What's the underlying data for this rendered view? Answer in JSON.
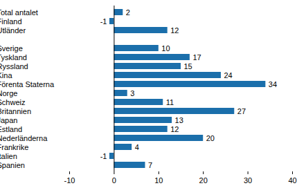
{
  "chart_data": {
    "type": "bar",
    "orientation": "horizontal",
    "categories": [
      "Total antalet",
      "Finland",
      "Utländer",
      null,
      "Sverige",
      "Tyskland",
      "Ryssland",
      "Kina",
      "Förenta Staterna",
      "Norge",
      "Schweiz",
      "Britannien",
      "Japan",
      "Estland",
      "Nederländerna",
      "Frankrike",
      "Italien",
      "Spanien"
    ],
    "values": [
      2,
      -1,
      12,
      null,
      10,
      17,
      15,
      24,
      34,
      3,
      11,
      27,
      13,
      12,
      20,
      4,
      -1,
      7
    ],
    "color": "#1b6fab",
    "data_labels": true,
    "xlim": [
      -10,
      40
    ],
    "xticks": [
      -10,
      0,
      10,
      20,
      30,
      40
    ],
    "grid": false
  }
}
